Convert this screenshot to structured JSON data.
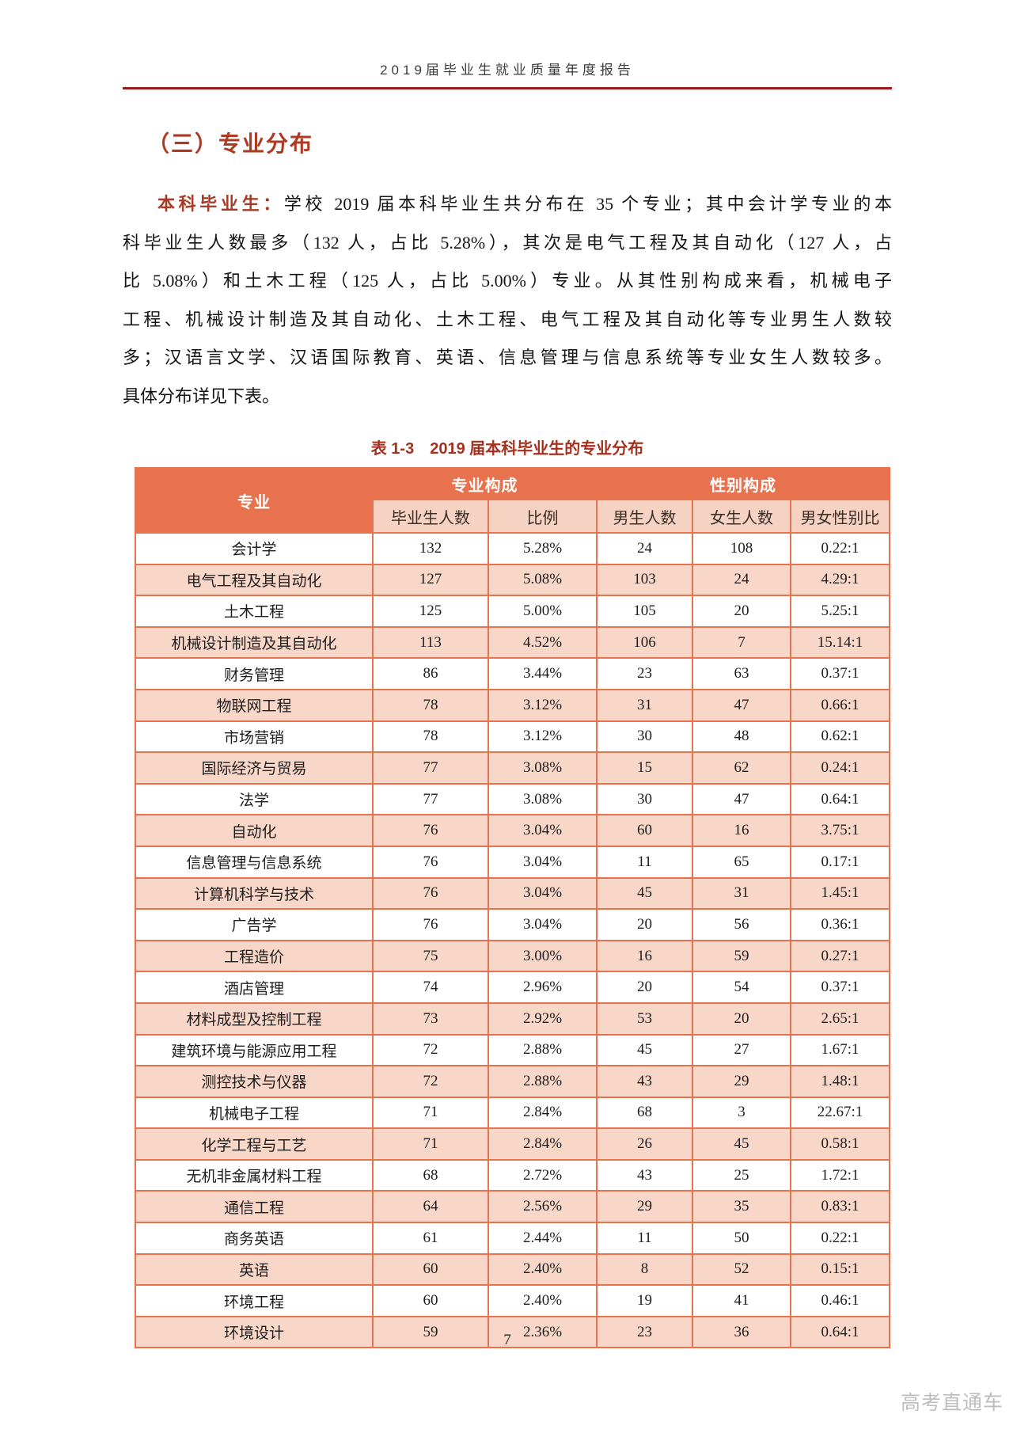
{
  "page": {
    "header_title": "2019届毕业生就业质量年度报告",
    "page_number": "7",
    "watermark": "高考直通车"
  },
  "section": {
    "title": "（三）专业分布"
  },
  "body_text": {
    "lead": "本科毕业生：",
    "lines": [
      "学校 2019 届本科毕业生共分布在 35 个专业；其中会计学专业的本",
      "科毕业生人数最多（132 人，占比 5.28%），其次是电气工程及其自动化（127 人，占",
      "比 5.08%）和土木工程（125 人，占比 5.00%）专业。从其性别构成来看，机械电子",
      "工程、机械设计制造及其自动化、土木工程、电气工程及其自动化等专业男生人数较",
      "多；汉语言文学、汉语国际教育、英语、信息管理与信息系统等专业女生人数较多。",
      "具体分布详见下表。"
    ]
  },
  "table": {
    "caption": "表 1-3　2019 届本科毕业生的专业分布",
    "header": {
      "major": "专业",
      "group_composition": "专业构成",
      "group_gender": "性别构成",
      "graduates": "毕业生人数",
      "ratio": "比例",
      "male": "男生人数",
      "female": "女生人数",
      "gender_ratio": "男女性别比"
    },
    "rows": [
      {
        "major": "会计学",
        "graduates": "132",
        "ratio": "5.28%",
        "male": "24",
        "female": "108",
        "gender_ratio": "0.22:1"
      },
      {
        "major": "电气工程及其自动化",
        "graduates": "127",
        "ratio": "5.08%",
        "male": "103",
        "female": "24",
        "gender_ratio": "4.29:1"
      },
      {
        "major": "土木工程",
        "graduates": "125",
        "ratio": "5.00%",
        "male": "105",
        "female": "20",
        "gender_ratio": "5.25:1"
      },
      {
        "major": "机械设计制造及其自动化",
        "graduates": "113",
        "ratio": "4.52%",
        "male": "106",
        "female": "7",
        "gender_ratio": "15.14:1"
      },
      {
        "major": "财务管理",
        "graduates": "86",
        "ratio": "3.44%",
        "male": "23",
        "female": "63",
        "gender_ratio": "0.37:1"
      },
      {
        "major": "物联网工程",
        "graduates": "78",
        "ratio": "3.12%",
        "male": "31",
        "female": "47",
        "gender_ratio": "0.66:1"
      },
      {
        "major": "市场营销",
        "graduates": "78",
        "ratio": "3.12%",
        "male": "30",
        "female": "48",
        "gender_ratio": "0.62:1"
      },
      {
        "major": "国际经济与贸易",
        "graduates": "77",
        "ratio": "3.08%",
        "male": "15",
        "female": "62",
        "gender_ratio": "0.24:1"
      },
      {
        "major": "法学",
        "graduates": "77",
        "ratio": "3.08%",
        "male": "30",
        "female": "47",
        "gender_ratio": "0.64:1"
      },
      {
        "major": "自动化",
        "graduates": "76",
        "ratio": "3.04%",
        "male": "60",
        "female": "16",
        "gender_ratio": "3.75:1"
      },
      {
        "major": "信息管理与信息系统",
        "graduates": "76",
        "ratio": "3.04%",
        "male": "11",
        "female": "65",
        "gender_ratio": "0.17:1"
      },
      {
        "major": "计算机科学与技术",
        "graduates": "76",
        "ratio": "3.04%",
        "male": "45",
        "female": "31",
        "gender_ratio": "1.45:1"
      },
      {
        "major": "广告学",
        "graduates": "76",
        "ratio": "3.04%",
        "male": "20",
        "female": "56",
        "gender_ratio": "0.36:1"
      },
      {
        "major": "工程造价",
        "graduates": "75",
        "ratio": "3.00%",
        "male": "16",
        "female": "59",
        "gender_ratio": "0.27:1"
      },
      {
        "major": "酒店管理",
        "graduates": "74",
        "ratio": "2.96%",
        "male": "20",
        "female": "54",
        "gender_ratio": "0.37:1"
      },
      {
        "major": "材料成型及控制工程",
        "graduates": "73",
        "ratio": "2.92%",
        "male": "53",
        "female": "20",
        "gender_ratio": "2.65:1"
      },
      {
        "major": "建筑环境与能源应用工程",
        "graduates": "72",
        "ratio": "2.88%",
        "male": "45",
        "female": "27",
        "gender_ratio": "1.67:1"
      },
      {
        "major": "测控技术与仪器",
        "graduates": "72",
        "ratio": "2.88%",
        "male": "43",
        "female": "29",
        "gender_ratio": "1.48:1"
      },
      {
        "major": "机械电子工程",
        "graduates": "71",
        "ratio": "2.84%",
        "male": "68",
        "female": "3",
        "gender_ratio": "22.67:1"
      },
      {
        "major": "化学工程与工艺",
        "graduates": "71",
        "ratio": "2.84%",
        "male": "26",
        "female": "45",
        "gender_ratio": "0.58:1"
      },
      {
        "major": "无机非金属材料工程",
        "graduates": "68",
        "ratio": "2.72%",
        "male": "43",
        "female": "25",
        "gender_ratio": "1.72:1"
      },
      {
        "major": "通信工程",
        "graduates": "64",
        "ratio": "2.56%",
        "male": "29",
        "female": "35",
        "gender_ratio": "0.83:1"
      },
      {
        "major": "商务英语",
        "graduates": "61",
        "ratio": "2.44%",
        "male": "11",
        "female": "50",
        "gender_ratio": "0.22:1"
      },
      {
        "major": "英语",
        "graduates": "60",
        "ratio": "2.40%",
        "male": "8",
        "female": "52",
        "gender_ratio": "0.15:1"
      },
      {
        "major": "环境工程",
        "graduates": "60",
        "ratio": "2.40%",
        "male": "19",
        "female": "41",
        "gender_ratio": "0.46:1"
      },
      {
        "major": "环境设计",
        "graduates": "59",
        "ratio": "2.36%",
        "male": "23",
        "female": "36",
        "gender_ratio": "0.64:1"
      }
    ]
  },
  "colors": {
    "accent_orange": "#e8724e",
    "rule_red": "#9b1b1b",
    "title_red": "#ae3a23",
    "caption_red": "#a4301e",
    "subheader_pink": "#f6d2c2",
    "row_pink": "#f8d6c8"
  }
}
